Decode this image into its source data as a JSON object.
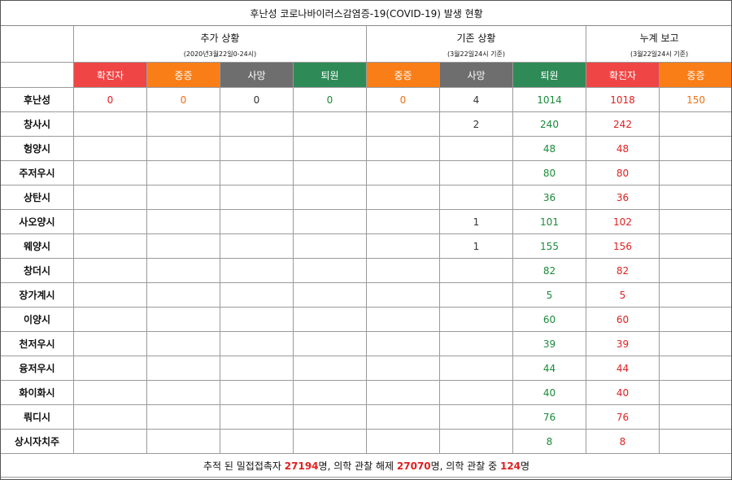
{
  "title": "후난성 코로나바이러스감염증-19(COVID-19) 발생 현황",
  "groups": [
    {
      "title": "추가 상황",
      "sub": "(2020년3월22일0-24시)"
    },
    {
      "title": "기존 상황",
      "sub": "(3월22일24시 기준)"
    },
    {
      "title": "누계 보고",
      "sub": "(3월22일24시 기준)"
    }
  ],
  "headers": [
    "확진자",
    "중증",
    "사망",
    "퇴원",
    "중증",
    "사망",
    "퇴원",
    "확진자",
    "중증"
  ],
  "header_colors": {
    "red": "#f04545",
    "orange": "#fa7e17",
    "gray": "#6e6e6e",
    "green": "#2e8b57"
  },
  "rows": [
    {
      "name": "후난성",
      "cells": [
        "0",
        "0",
        "0",
        "0",
        "0",
        "4",
        "1014",
        "1018",
        "150"
      ]
    },
    {
      "name": "창사시",
      "cells": [
        "",
        "",
        "",
        "",
        "",
        "2",
        "240",
        "242",
        ""
      ]
    },
    {
      "name": "헝양시",
      "cells": [
        "",
        "",
        "",
        "",
        "",
        "",
        "48",
        "48",
        ""
      ]
    },
    {
      "name": "주저우시",
      "cells": [
        "",
        "",
        "",
        "",
        "",
        "",
        "80",
        "80",
        ""
      ]
    },
    {
      "name": "상탄시",
      "cells": [
        "",
        "",
        "",
        "",
        "",
        "",
        "36",
        "36",
        ""
      ]
    },
    {
      "name": "사오양시",
      "cells": [
        "",
        "",
        "",
        "",
        "",
        "1",
        "101",
        "102",
        ""
      ]
    },
    {
      "name": "웨양시",
      "cells": [
        "",
        "",
        "",
        "",
        "",
        "1",
        "155",
        "156",
        ""
      ]
    },
    {
      "name": "창더시",
      "cells": [
        "",
        "",
        "",
        "",
        "",
        "",
        "82",
        "82",
        ""
      ]
    },
    {
      "name": "장가계시",
      "cells": [
        "",
        "",
        "",
        "",
        "",
        "",
        "5",
        "5",
        ""
      ]
    },
    {
      "name": "이양시",
      "cells": [
        "",
        "",
        "",
        "",
        "",
        "",
        "60",
        "60",
        ""
      ]
    },
    {
      "name": "천저우시",
      "cells": [
        "",
        "",
        "",
        "",
        "",
        "",
        "39",
        "39",
        ""
      ]
    },
    {
      "name": "융저우시",
      "cells": [
        "",
        "",
        "",
        "",
        "",
        "",
        "44",
        "44",
        ""
      ]
    },
    {
      "name": "화이화시",
      "cells": [
        "",
        "",
        "",
        "",
        "",
        "",
        "40",
        "40",
        ""
      ]
    },
    {
      "name": "뤄디시",
      "cells": [
        "",
        "",
        "",
        "",
        "",
        "",
        "76",
        "76",
        ""
      ]
    },
    {
      "name": "상시자치주",
      "cells": [
        "",
        "",
        "",
        "",
        "",
        "",
        "8",
        "8",
        ""
      ]
    }
  ],
  "footer": {
    "part1": "추적 된 밀접접촉자 ",
    "num1": "27194",
    "part2": "명, 의학 관찰 해제 ",
    "num2": "27070",
    "part3": "명, 의학 관찰 중 ",
    "num3": "124",
    "part4": "명"
  }
}
